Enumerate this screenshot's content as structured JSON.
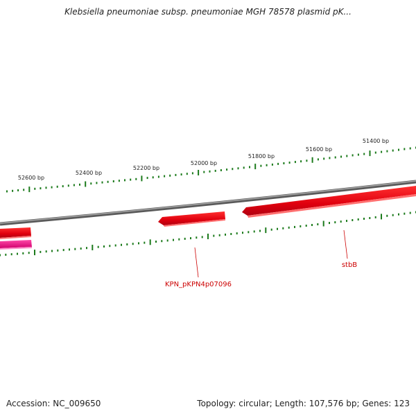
{
  "title": "Klebsiella pneumoniae subsp. pneumoniae MGH 78578 plasmid pK...",
  "footer": {
    "accession": "Accession: NC_009650",
    "summary": "Topology: circular; Length: 107,576 bp; Genes: 123"
  },
  "ruler": {
    "labels": [
      "52600 bp",
      "52400 bp",
      "52200 bp",
      "52000 bp",
      "51800 bp",
      "51600 bp",
      "51400 bp"
    ]
  },
  "genes": [
    {
      "label": "KPN_pKPN4p07096",
      "color": "#e0000e",
      "strand": "reverse"
    },
    {
      "label": "stbB",
      "color": "#e0000e",
      "strand": "reverse"
    }
  ],
  "colors": {
    "backbone": "#808080",
    "tick": "#1b7a1b",
    "gene_red": "#e0000e",
    "gene_magenta": "#e6007e",
    "label": "#cc0000"
  }
}
